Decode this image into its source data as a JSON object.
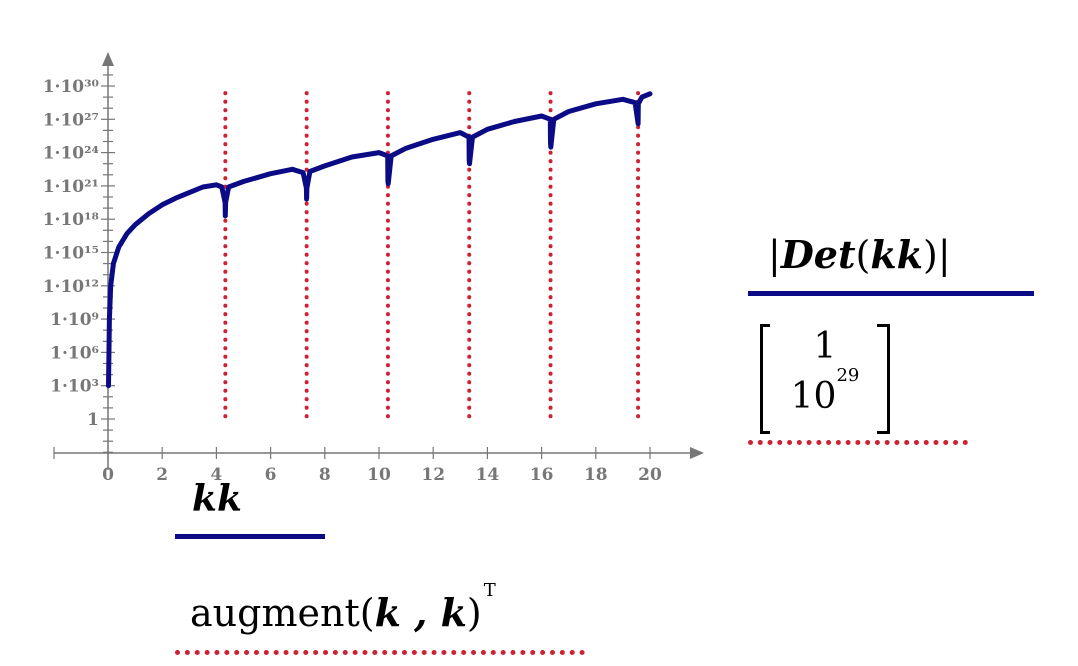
{
  "chart_data": {
    "type": "line",
    "x_axis": {
      "min": -2,
      "max": 21,
      "tick_labels": [
        "0",
        "2",
        "4",
        "6",
        "8",
        "10",
        "12",
        "14",
        "16",
        "18",
        "20"
      ],
      "tick_values": [
        0,
        2,
        4,
        6,
        8,
        10,
        12,
        14,
        16,
        18,
        20
      ]
    },
    "y_axis": {
      "scale": "log",
      "min_exp": -3,
      "max_exp": 31,
      "tick_labels": [
        "1",
        "1·10³",
        "1·10⁶",
        "1·10⁹",
        "1·10¹²",
        "1·10¹⁵",
        "1·10¹⁸",
        "1·10²¹",
        "1·10²⁴",
        "1·10²⁷",
        "1·10³⁰"
      ],
      "tick_exponents": [
        0,
        3,
        6,
        9,
        12,
        15,
        18,
        21,
        24,
        27,
        30
      ]
    },
    "series": [
      {
        "trace_label": "|Det(kk)|",
        "x_label": "kk",
        "color": "#0b0b86",
        "style": "solid",
        "x": [
          0.02,
          0.05,
          0.1,
          0.2,
          0.4,
          0.7,
          1.0,
          1.5,
          2.0,
          2.5,
          3.0,
          3.5,
          4.0,
          4.2,
          4.32,
          4.33,
          4.34,
          4.45,
          5.0,
          6.0,
          6.8,
          7.2,
          7.32,
          7.33,
          7.34,
          7.45,
          8.0,
          9.0,
          10.0,
          10.32,
          10.33,
          10.34,
          10.45,
          11.0,
          12.0,
          13.0,
          13.32,
          13.33,
          13.34,
          13.45,
          14.0,
          15.0,
          16.0,
          16.32,
          16.33,
          16.34,
          16.45,
          17.0,
          18.0,
          19.0,
          19.45,
          19.55,
          19.56,
          19.57,
          19.7,
          20.0
        ],
        "y_log10": [
          3,
          9,
          12,
          14,
          15.5,
          16.7,
          17.5,
          18.5,
          19.3,
          19.9,
          20.4,
          20.9,
          21.1,
          20.9,
          19.5,
          18.3,
          19.5,
          20.9,
          21.4,
          22.1,
          22.5,
          22.2,
          20.8,
          19.8,
          20.8,
          22.3,
          22.8,
          23.6,
          24.0,
          23.7,
          21.5,
          21.2,
          23.7,
          24.4,
          25.2,
          25.8,
          25.4,
          23.3,
          23.0,
          25.4,
          26.1,
          26.8,
          27.3,
          27.0,
          24.9,
          24.5,
          27.0,
          27.7,
          28.4,
          28.8,
          28.5,
          26.8,
          26.6,
          28.4,
          29.0,
          29.3
        ]
      },
      {
        "trace_label": "[1; 10^29]",
        "x_label": "augment(k, k)^T",
        "color": "#cc2233",
        "style": "dotted",
        "vertical_lines_x": [
          4.33,
          7.33,
          10.33,
          13.33,
          16.33,
          19.56
        ],
        "y_range_log10": [
          0,
          29
        ]
      }
    ]
  },
  "legend": {
    "x_trace1": "kk",
    "x_trace2_fn": "augment",
    "x_trace2_args": "k , k",
    "x_trace2_sup": "T",
    "y_trace1_fn": "Det",
    "y_trace1_arg": "kk",
    "y_trace2_row1": "1",
    "y_trace2_row2_base": "10",
    "y_trace2_row2_exp": "29"
  }
}
